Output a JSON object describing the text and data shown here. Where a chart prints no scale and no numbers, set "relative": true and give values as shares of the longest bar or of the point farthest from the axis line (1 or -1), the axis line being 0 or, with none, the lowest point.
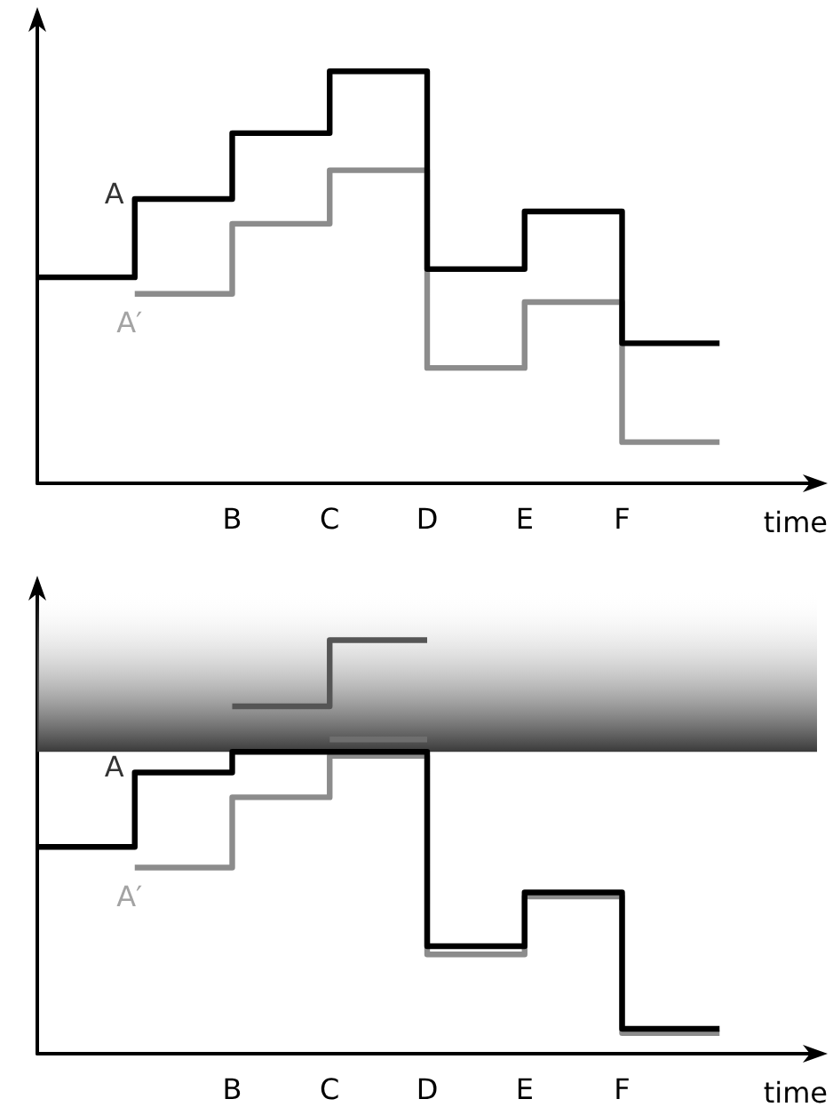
{
  "chart_data": [
    {
      "type": "step",
      "relative": true,
      "xlabel": "time",
      "categories": [
        null,
        null,
        "B",
        "C",
        "D",
        "E",
        "F",
        null,
        null
      ],
      "grid": false,
      "marker": "none",
      "line_style": "solid",
      "series": [
        {
          "color": "#000000",
          "values": [
            0.5,
            0.69,
            0.85,
            1,
            0.52,
            0.66,
            0.34,
            0.34,
            null
          ]
        },
        {
          "color": "#8c8c8c",
          "values": [
            null,
            0.46,
            0.63,
            0.76,
            0.28,
            0.44,
            0.1,
            0.1,
            null
          ]
        }
      ],
      "annotations": [
        "A",
        "A′"
      ]
    },
    {
      "type": "step",
      "relative": true,
      "xlabel": "time",
      "categories": [
        null,
        null,
        "B",
        "C",
        "D",
        "E",
        "F",
        null,
        null
      ],
      "grid": false,
      "marker": "none",
      "line_style": "solid",
      "bands": [
        {
          "axis": "y",
          "from": 0.73,
          "to": 1.12,
          "color": "#3a3a3a"
        }
      ],
      "series": [
        {
          "color": "#000000",
          "values": [
            0.5,
            0.68,
            0.73,
            0.73,
            0.26,
            0.39,
            0.06,
            0.06,
            null
          ]
        },
        {
          "color": "#8c8c8c",
          "values": [
            null,
            0.45,
            0.62,
            0.72,
            0.24,
            0.38,
            0.05,
            0.05,
            null
          ]
        },
        {
          "color": "#555555",
          "values": [
            null,
            null,
            0.84,
            1,
            1,
            null,
            null,
            null,
            null
          ]
        },
        {
          "color": "#6e6e6e",
          "values": [
            null,
            null,
            null,
            0.76,
            0.76,
            null,
            null,
            null,
            null
          ]
        }
      ],
      "annotations": [
        "A",
        "A′"
      ]
    }
  ]
}
